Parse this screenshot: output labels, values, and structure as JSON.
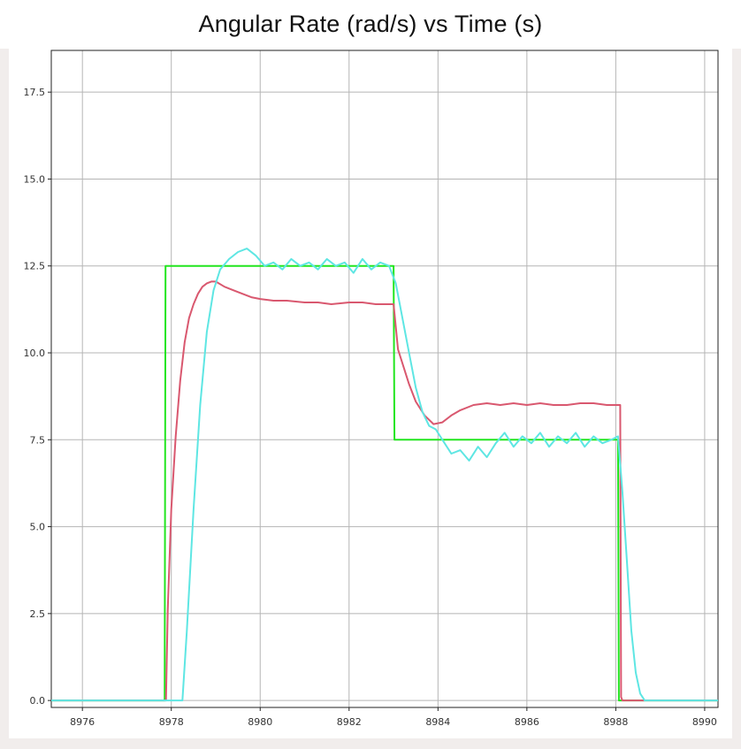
{
  "title": "Angular Rate (rad/s)  vs  Time (s)",
  "colors": {
    "setpoint": "#22e51f",
    "measured_red": "#d9586f",
    "measured_cyan": "#5ee6e3",
    "grid": "#b5b5b5",
    "axis": "#222222"
  },
  "chart_data": {
    "type": "line",
    "title": "Angular Rate (rad/s)  vs  Time (s)",
    "xlabel": "",
    "ylabel": "",
    "xlim": [
      8975.3,
      8990.3
    ],
    "ylim": [
      -0.2,
      18.7
    ],
    "grid": true,
    "x_ticks": [
      8976,
      8978,
      8980,
      8982,
      8984,
      8986,
      8988,
      8990
    ],
    "x_tick_labels": [
      "8976",
      "8978",
      "8980",
      "8982",
      "8984",
      "8986",
      "8988",
      "8990"
    ],
    "y_ticks": [
      0,
      2.5,
      5,
      7.5,
      10,
      12.5,
      15,
      17.5
    ],
    "y_tick_labels": [
      "0.0",
      "2.5",
      "5.0",
      "7.5",
      "10.0",
      "12.5",
      "15.0",
      "17.5"
    ],
    "series": [
      {
        "color": "#22e51f",
        "x": [
          8975.3,
          8977.85,
          8977.87,
          8983.0,
          8983.02,
          8988.05,
          8988.07,
          8990.3
        ],
        "y": [
          0,
          0,
          12.5,
          12.5,
          7.5,
          7.5,
          0,
          0
        ]
      },
      {
        "color": "#d9586f",
        "x": [
          8975.3,
          8977.88,
          8977.92,
          8978.0,
          8978.1,
          8978.2,
          8978.3,
          8978.4,
          8978.5,
          8978.6,
          8978.7,
          8978.8,
          8978.9,
          8979.0,
          8979.2,
          8979.4,
          8979.6,
          8979.8,
          8980.0,
          8980.3,
          8980.6,
          8981.0,
          8981.3,
          8981.6,
          8982.0,
          8982.3,
          8982.6,
          8982.9,
          8983.0,
          8983.1,
          8983.2,
          8983.35,
          8983.5,
          8983.7,
          8983.9,
          8984.1,
          8984.3,
          8984.5,
          8984.8,
          8985.1,
          8985.4,
          8985.7,
          8986.0,
          8986.3,
          8986.6,
          8986.9,
          8987.2,
          8987.5,
          8987.8,
          8988.1,
          8988.12,
          8988.15,
          8990.3
        ],
        "y": [
          0,
          0,
          2.6,
          5.5,
          7.6,
          9.2,
          10.3,
          11.0,
          11.4,
          11.7,
          11.9,
          12.0,
          12.05,
          12.05,
          11.9,
          11.8,
          11.7,
          11.6,
          11.55,
          11.5,
          11.5,
          11.45,
          11.45,
          11.4,
          11.45,
          11.45,
          11.4,
          11.4,
          11.4,
          10.1,
          9.7,
          9.1,
          8.6,
          8.2,
          7.95,
          8.0,
          8.2,
          8.35,
          8.5,
          8.55,
          8.5,
          8.55,
          8.5,
          8.55,
          8.5,
          8.5,
          8.55,
          8.55,
          8.5,
          8.5,
          0.1,
          0,
          0
        ]
      },
      {
        "color": "#5ee6e3",
        "x": [
          8975.3,
          8978.25,
          8978.35,
          8978.5,
          8978.65,
          8978.8,
          8978.95,
          8979.1,
          8979.3,
          8979.5,
          8979.7,
          8979.9,
          8980.1,
          8980.3,
          8980.5,
          8980.7,
          8980.9,
          8981.1,
          8981.3,
          8981.5,
          8981.7,
          8981.9,
          8982.1,
          8982.3,
          8982.5,
          8982.7,
          8982.9,
          8983.05,
          8983.2,
          8983.35,
          8983.5,
          8983.65,
          8983.8,
          8983.95,
          8984.1,
          8984.3,
          8984.5,
          8984.7,
          8984.9,
          8985.1,
          8985.3,
          8985.5,
          8985.7,
          8985.9,
          8986.1,
          8986.3,
          8986.5,
          8986.7,
          8986.9,
          8987.1,
          8987.3,
          8987.5,
          8987.7,
          8987.9,
          8988.05,
          8988.15,
          8988.25,
          8988.35,
          8988.45,
          8988.55,
          8988.65,
          8990.3
        ],
        "y": [
          0,
          0,
          2.0,
          5.5,
          8.5,
          10.6,
          11.8,
          12.4,
          12.7,
          12.9,
          13.0,
          12.8,
          12.5,
          12.6,
          12.4,
          12.7,
          12.5,
          12.6,
          12.4,
          12.7,
          12.5,
          12.6,
          12.3,
          12.7,
          12.4,
          12.6,
          12.5,
          12.0,
          11.0,
          10.0,
          9.0,
          8.3,
          7.9,
          7.8,
          7.5,
          7.1,
          7.2,
          6.9,
          7.3,
          7.0,
          7.4,
          7.7,
          7.3,
          7.6,
          7.4,
          7.7,
          7.3,
          7.6,
          7.4,
          7.7,
          7.3,
          7.6,
          7.4,
          7.5,
          7.6,
          6.0,
          4.0,
          2.0,
          0.8,
          0.2,
          0,
          0
        ]
      }
    ]
  }
}
